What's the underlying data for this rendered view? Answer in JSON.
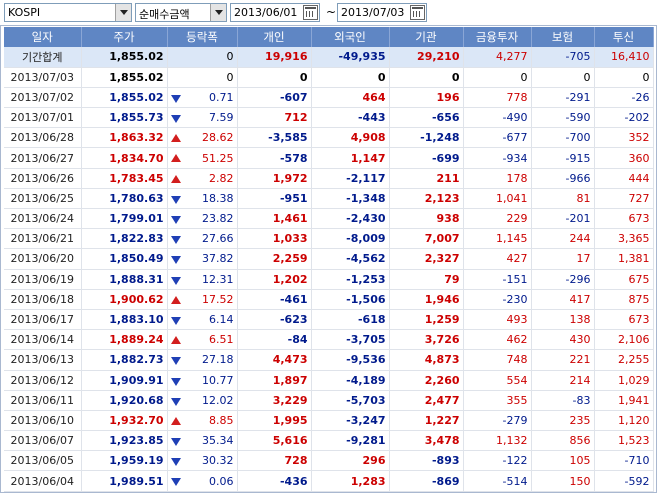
{
  "filters": {
    "market": "KOSPI",
    "metric": "순매수금액",
    "start_date": "2013/06/01",
    "end_date": "2013/07/03",
    "separator": "~"
  },
  "columns": [
    "일자",
    "주가",
    "등락폭",
    "개인",
    "외국인",
    "기관",
    "금융투자",
    "보험",
    "투신"
  ],
  "summary": {
    "label": "기간합계",
    "price": "1,855.02",
    "change": "0",
    "individual": "19,916",
    "foreign": "-49,935",
    "institution": "29,210",
    "fin_invest": "4,277",
    "insurance": "-705",
    "trust": "16,410"
  },
  "rows": [
    {
      "date": "2013/07/03",
      "price": "1,855.02",
      "dir": "none",
      "change": "0",
      "individual": "0",
      "foreign": "0",
      "institution": "0",
      "fin_invest": "0",
      "insurance": "0",
      "trust": "0"
    },
    {
      "date": "2013/07/02",
      "price": "1,855.02",
      "dir": "down",
      "change": "0.71",
      "individual": "-607",
      "foreign": "464",
      "institution": "196",
      "fin_invest": "778",
      "insurance": "-291",
      "trust": "-26"
    },
    {
      "date": "2013/07/01",
      "price": "1,855.73",
      "dir": "down",
      "change": "7.59",
      "individual": "712",
      "foreign": "-443",
      "institution": "-656",
      "fin_invest": "-490",
      "insurance": "-590",
      "trust": "-202"
    },
    {
      "date": "2013/06/28",
      "price": "1,863.32",
      "dir": "up",
      "change": "28.62",
      "individual": "-3,585",
      "foreign": "4,908",
      "institution": "-1,248",
      "fin_invest": "-677",
      "insurance": "-700",
      "trust": "352"
    },
    {
      "date": "2013/06/27",
      "price": "1,834.70",
      "dir": "up",
      "change": "51.25",
      "individual": "-578",
      "foreign": "1,147",
      "institution": "-699",
      "fin_invest": "-934",
      "insurance": "-915",
      "trust": "360"
    },
    {
      "date": "2013/06/26",
      "price": "1,783.45",
      "dir": "up",
      "change": "2.82",
      "individual": "1,972",
      "foreign": "-2,117",
      "institution": "211",
      "fin_invest": "178",
      "insurance": "-966",
      "trust": "444"
    },
    {
      "date": "2013/06/25",
      "price": "1,780.63",
      "dir": "down",
      "change": "18.38",
      "individual": "-951",
      "foreign": "-1,348",
      "institution": "2,123",
      "fin_invest": "1,041",
      "insurance": "81",
      "trust": "727"
    },
    {
      "date": "2013/06/24",
      "price": "1,799.01",
      "dir": "down",
      "change": "23.82",
      "individual": "1,461",
      "foreign": "-2,430",
      "institution": "938",
      "fin_invest": "229",
      "insurance": "-201",
      "trust": "673"
    },
    {
      "date": "2013/06/21",
      "price": "1,822.83",
      "dir": "down",
      "change": "27.66",
      "individual": "1,033",
      "foreign": "-8,009",
      "institution": "7,007",
      "fin_invest": "1,145",
      "insurance": "244",
      "trust": "3,365"
    },
    {
      "date": "2013/06/20",
      "price": "1,850.49",
      "dir": "down",
      "change": "37.82",
      "individual": "2,259",
      "foreign": "-4,562",
      "institution": "2,327",
      "fin_invest": "427",
      "insurance": "17",
      "trust": "1,381"
    },
    {
      "date": "2013/06/19",
      "price": "1,888.31",
      "dir": "down",
      "change": "12.31",
      "individual": "1,202",
      "foreign": "-1,253",
      "institution": "79",
      "fin_invest": "-151",
      "insurance": "-296",
      "trust": "675"
    },
    {
      "date": "2013/06/18",
      "price": "1,900.62",
      "dir": "up",
      "change": "17.52",
      "individual": "-461",
      "foreign": "-1,506",
      "institution": "1,946",
      "fin_invest": "-230",
      "insurance": "417",
      "trust": "875"
    },
    {
      "date": "2013/06/17",
      "price": "1,883.10",
      "dir": "down",
      "change": "6.14",
      "individual": "-623",
      "foreign": "-618",
      "institution": "1,259",
      "fin_invest": "493",
      "insurance": "138",
      "trust": "673"
    },
    {
      "date": "2013/06/14",
      "price": "1,889.24",
      "dir": "up",
      "change": "6.51",
      "individual": "-84",
      "foreign": "-3,705",
      "institution": "3,726",
      "fin_invest": "462",
      "insurance": "430",
      "trust": "2,106"
    },
    {
      "date": "2013/06/13",
      "price": "1,882.73",
      "dir": "down",
      "change": "27.18",
      "individual": "4,473",
      "foreign": "-9,536",
      "institution": "4,873",
      "fin_invest": "748",
      "insurance": "221",
      "trust": "2,255"
    },
    {
      "date": "2013/06/12",
      "price": "1,909.91",
      "dir": "down",
      "change": "10.77",
      "individual": "1,897",
      "foreign": "-4,189",
      "institution": "2,260",
      "fin_invest": "554",
      "insurance": "214",
      "trust": "1,029"
    },
    {
      "date": "2013/06/11",
      "price": "1,920.68",
      "dir": "down",
      "change": "12.02",
      "individual": "3,229",
      "foreign": "-5,703",
      "institution": "2,477",
      "fin_invest": "355",
      "insurance": "-83",
      "trust": "1,941"
    },
    {
      "date": "2013/06/10",
      "price": "1,932.70",
      "dir": "up",
      "change": "8.85",
      "individual": "1,995",
      "foreign": "-3,247",
      "institution": "1,227",
      "fin_invest": "-279",
      "insurance": "235",
      "trust": "1,120"
    },
    {
      "date": "2013/06/07",
      "price": "1,923.85",
      "dir": "down",
      "change": "35.34",
      "individual": "5,616",
      "foreign": "-9,281",
      "institution": "3,478",
      "fin_invest": "1,132",
      "insurance": "856",
      "trust": "1,523"
    },
    {
      "date": "2013/06/05",
      "price": "1,959.19",
      "dir": "down",
      "change": "30.32",
      "individual": "728",
      "foreign": "296",
      "institution": "-893",
      "fin_invest": "-122",
      "insurance": "105",
      "trust": "-710"
    },
    {
      "date": "2013/06/04",
      "price": "1,989.51",
      "dir": "down",
      "change": "0.06",
      "individual": "-436",
      "foreign": "1,283",
      "institution": "-869",
      "fin_invest": "-514",
      "insurance": "150",
      "trust": "-592"
    }
  ],
  "colors": {
    "header_bg": "#5f86c4",
    "summary_bg": "#dbe7f7",
    "up": "#cc0000",
    "down": "#001a8c"
  }
}
